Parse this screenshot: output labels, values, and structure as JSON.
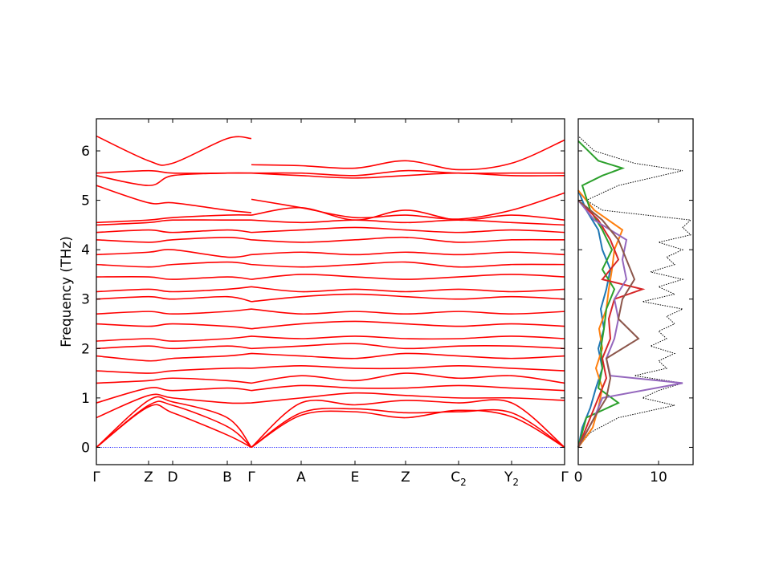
{
  "chart_data": [
    {
      "type": "line",
      "panel": "phonon band structure",
      "ylabel": "Frequency (THz)",
      "xlabel": "",
      "ylim": [
        -0.35,
        6.65
      ],
      "yticks": [
        0,
        1,
        2,
        3,
        4,
        5,
        6
      ],
      "path_labels": [
        {
          "label": "Γ",
          "sub": ""
        },
        {
          "label": "Z",
          "sub": ""
        },
        {
          "label": "D",
          "sub": ""
        },
        {
          "label": "B",
          "sub": ""
        },
        {
          "label": "Γ",
          "sub": ""
        },
        {
          "label": "A",
          "sub": ""
        },
        {
          "label": "E",
          "sub": ""
        },
        {
          "label": "Z",
          "sub": ""
        },
        {
          "label": "C",
          "sub": "2"
        },
        {
          "label": "Y",
          "sub": "2"
        },
        {
          "label": "Γ",
          "sub": ""
        }
      ],
      "segment_breaks_at": [
        "Γ (4th label)"
      ],
      "zero_line": {
        "value": 0,
        "color": "#0000ff",
        "style": "dotted"
      },
      "band_color": "#ff0000",
      "representative_bands_at_points": {
        "columns": [
          "Γ",
          "Z",
          "D",
          "B",
          "Γ",
          "A",
          "E",
          "Z",
          "C2",
          "Y2",
          "Γ"
        ],
        "series": [
          {
            "values": [
              0.0,
              0.82,
              0.7,
              0.25,
              0.0,
              0.65,
              0.72,
              0.6,
              0.75,
              0.62,
              0.0
            ]
          },
          {
            "values": [
              0.0,
              0.85,
              0.85,
              0.42,
              0.0,
              0.7,
              0.78,
              0.7,
              0.72,
              0.7,
              0.0
            ]
          },
          {
            "values": [
              0.0,
              0.95,
              0.92,
              0.6,
              0.0,
              0.9,
              0.86,
              0.95,
              0.9,
              0.9,
              0.0
            ]
          },
          {
            "values": [
              0.6,
              1.05,
              1.0,
              0.9,
              0.9,
              1.0,
              1.1,
              1.05,
              1.0,
              1.0,
              0.95
            ]
          },
          {
            "values": [
              0.9,
              1.2,
              1.15,
              1.2,
              1.15,
              1.25,
              1.2,
              1.2,
              1.25,
              1.2,
              1.15
            ]
          },
          {
            "values": [
              1.3,
              1.35,
              1.4,
              1.35,
              1.3,
              1.45,
              1.35,
              1.5,
              1.4,
              1.45,
              1.3
            ]
          },
          {
            "values": [
              1.55,
              1.5,
              1.55,
              1.6,
              1.6,
              1.65,
              1.6,
              1.6,
              1.65,
              1.6,
              1.55
            ]
          },
          {
            "values": [
              1.85,
              1.75,
              1.8,
              1.85,
              1.9,
              1.85,
              1.8,
              1.9,
              1.85,
              1.8,
              1.85
            ]
          },
          {
            "values": [
              2.0,
              2.05,
              2.0,
              2.05,
              2.0,
              2.05,
              2.1,
              2.0,
              2.05,
              2.05,
              2.0
            ]
          },
          {
            "values": [
              2.15,
              2.2,
              2.15,
              2.2,
              2.25,
              2.2,
              2.25,
              2.2,
              2.2,
              2.25,
              2.2
            ]
          },
          {
            "values": [
              2.5,
              2.45,
              2.5,
              2.45,
              2.4,
              2.5,
              2.55,
              2.5,
              2.45,
              2.5,
              2.45
            ]
          },
          {
            "values": [
              2.7,
              2.75,
              2.7,
              2.75,
              2.8,
              2.7,
              2.75,
              2.7,
              2.75,
              2.7,
              2.75
            ]
          },
          {
            "values": [
              3.0,
              3.05,
              3.0,
              3.05,
              2.95,
              3.05,
              3.1,
              3.05,
              3.0,
              3.05,
              3.0
            ]
          },
          {
            "values": [
              3.15,
              3.2,
              3.15,
              3.2,
              3.25,
              3.15,
              3.2,
              3.15,
              3.2,
              3.15,
              3.2
            ]
          },
          {
            "values": [
              3.45,
              3.45,
              3.4,
              3.45,
              3.4,
              3.5,
              3.45,
              3.4,
              3.45,
              3.5,
              3.45
            ]
          },
          {
            "values": [
              3.7,
              3.65,
              3.7,
              3.75,
              3.7,
              3.65,
              3.7,
              3.75,
              3.65,
              3.7,
              3.7
            ]
          },
          {
            "values": [
              3.9,
              3.95,
              4.0,
              3.85,
              3.9,
              3.95,
              3.9,
              3.95,
              3.9,
              3.95,
              3.9
            ]
          },
          {
            "values": [
              4.2,
              4.15,
              4.2,
              4.25,
              4.2,
              4.15,
              4.2,
              4.25,
              4.15,
              4.2,
              4.2
            ]
          },
          {
            "values": [
              4.35,
              4.4,
              4.35,
              4.4,
              4.35,
              4.4,
              4.45,
              4.4,
              4.35,
              4.4,
              4.35
            ]
          },
          {
            "values": [
              4.5,
              4.55,
              4.6,
              4.6,
              4.6,
              4.55,
              4.6,
              4.55,
              4.6,
              4.55,
              4.5
            ]
          },
          {
            "values": [
              4.55,
              4.6,
              4.65,
              4.7,
              4.7,
              4.85,
              4.6,
              4.8,
              4.6,
              4.7,
              4.6
            ]
          },
          {
            "values": [
              5.3,
              4.95,
              4.95,
              4.8,
              4.75,
              null,
              null,
              null,
              null,
              null,
              null
            ]
          },
          {
            "values": [
              null,
              null,
              null,
              null,
              5.02,
              4.85,
              4.65,
              4.7,
              4.62,
              4.8,
              5.15
            ]
          },
          {
            "values": [
              5.5,
              5.3,
              5.5,
              5.55,
              5.55,
              5.5,
              5.45,
              5.5,
              5.55,
              5.5,
              5.5
            ]
          },
          {
            "values": [
              5.55,
              5.6,
              5.55,
              5.55,
              5.55,
              5.55,
              5.5,
              5.6,
              5.55,
              5.55,
              5.55
            ]
          },
          {
            "values": [
              6.3,
              5.8,
              5.75,
              6.25,
              6.25,
              null,
              null,
              null,
              null,
              null,
              null
            ]
          },
          {
            "values": [
              null,
              null,
              null,
              null,
              5.72,
              5.7,
              5.65,
              5.8,
              5.62,
              5.75,
              6.22
            ]
          }
        ]
      }
    },
    {
      "type": "line",
      "panel": "projected density of states",
      "xlabel": "",
      "ylabel": "",
      "xlim": [
        0,
        14.3
      ],
      "xticks": [
        0,
        10
      ],
      "ylim": [
        -0.35,
        6.65
      ],
      "series": [
        {
          "color": "#000000",
          "style": "dotted",
          "y": [
            0.0,
            0.3,
            0.6,
            0.85,
            1.0,
            1.15,
            1.3,
            1.45,
            1.6,
            1.75,
            1.9,
            2.05,
            2.2,
            2.35,
            2.5,
            2.65,
            2.8,
            2.95,
            3.1,
            3.25,
            3.4,
            3.55,
            3.7,
            3.85,
            4.0,
            4.15,
            4.3,
            4.45,
            4.6,
            4.8,
            5.0,
            5.3,
            5.45,
            5.6,
            5.75,
            6.0,
            6.3
          ],
          "x": [
            0,
            1.5,
            5,
            12,
            8,
            10,
            13,
            7,
            11,
            10,
            12,
            9,
            11,
            10,
            12,
            11,
            13,
            8,
            12,
            10,
            13,
            9,
            12,
            11,
            13,
            10,
            14,
            13,
            14,
            3,
            1,
            5,
            9,
            13,
            7,
            2,
            0
          ]
        },
        {
          "color": "#1f77b4",
          "style": "solid",
          "y": [
            0.0,
            0.4,
            0.8,
            1.2,
            1.6,
            2.0,
            2.4,
            2.8,
            3.2,
            3.6,
            4.0,
            4.4,
            4.8,
            5.2
          ],
          "x": [
            0,
            0.5,
            1.5,
            2.2,
            3.0,
            2.5,
            3.2,
            2.8,
            3.5,
            4.0,
            3.0,
            2.5,
            1.0,
            0
          ]
        },
        {
          "color": "#ff7f0e",
          "style": "solid",
          "y": [
            0.0,
            0.4,
            0.8,
            1.2,
            1.6,
            2.0,
            2.4,
            2.8,
            3.2,
            3.6,
            4.0,
            4.4,
            4.8,
            5.2
          ],
          "x": [
            0,
            1.8,
            2.5,
            3.0,
            2.2,
            3.0,
            2.6,
            3.5,
            3.8,
            4.2,
            4.5,
            5.5,
            2.0,
            0
          ]
        },
        {
          "color": "#2ca02c",
          "style": "solid",
          "y": [
            0.0,
            0.6,
            0.9,
            1.2,
            1.6,
            2.0,
            2.4,
            2.8,
            3.2,
            3.6,
            4.0,
            4.4,
            4.8,
            5.3,
            5.5,
            5.65,
            5.8,
            6.2
          ],
          "x": [
            0,
            1.0,
            5.0,
            2.5,
            3.0,
            2.8,
            3.2,
            3.5,
            4.5,
            3.0,
            4.2,
            3.0,
            1.5,
            0.5,
            3.0,
            5.5,
            2.5,
            0
          ]
        },
        {
          "color": "#d62728",
          "style": "solid",
          "y": [
            0.0,
            0.6,
            1.0,
            1.4,
            1.8,
            2.2,
            2.6,
            3.0,
            3.2,
            3.4,
            3.8,
            4.2,
            4.6,
            5.0
          ],
          "x": [
            0,
            1.5,
            2.5,
            3.5,
            3.0,
            4.0,
            3.8,
            4.5,
            8.0,
            3.0,
            5.0,
            4.0,
            2.5,
            0
          ]
        },
        {
          "color": "#9467bd",
          "style": "solid",
          "y": [
            0.0,
            0.6,
            1.0,
            1.3,
            1.45,
            1.8,
            2.2,
            2.6,
            3.0,
            3.4,
            3.8,
            4.2,
            4.6,
            5.0
          ],
          "x": [
            0,
            2.0,
            3.0,
            13.0,
            4.0,
            3.5,
            4.5,
            5.0,
            4.5,
            6.0,
            5.5,
            6.0,
            2.0,
            0
          ]
        },
        {
          "color": "#8c564b",
          "style": "solid",
          "y": [
            0.0,
            0.6,
            1.0,
            1.4,
            1.8,
            2.2,
            2.6,
            3.0,
            3.4,
            3.8,
            4.2,
            4.6,
            5.0
          ],
          "x": [
            0,
            2.0,
            3.5,
            4.0,
            3.5,
            7.5,
            5.0,
            5.5,
            7.0,
            6.0,
            5.0,
            3.0,
            0
          ]
        }
      ]
    }
  ]
}
